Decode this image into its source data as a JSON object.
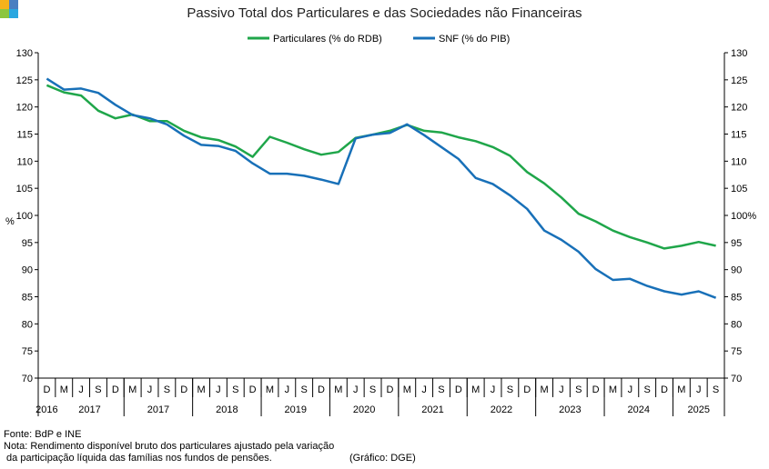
{
  "colors": {
    "logo": [
      "#f6b21b",
      "#4a7fc1",
      "#8cc63f",
      "#2aa7e0"
    ]
  },
  "chart_data": {
    "type": "line",
    "title": "Passivo Total dos Particulares e das Sociedades não Financeiras",
    "ylabel_left": "%",
    "ylabel_right_suffix": "%",
    "ylim": [
      70,
      130
    ],
    "yticks": [
      70,
      75,
      80,
      85,
      90,
      95,
      100,
      105,
      110,
      115,
      120,
      125,
      130
    ],
    "grid": "none",
    "legend_position": "top-center",
    "x": [
      "D",
      "M",
      "J",
      "S",
      "D",
      "M",
      "J",
      "S",
      "D",
      "M",
      "J",
      "S",
      "D",
      "M",
      "J",
      "S",
      "D",
      "M",
      "J",
      "S",
      "D",
      "M",
      "J",
      "S",
      "D",
      "M",
      "J",
      "S",
      "D",
      "M",
      "J",
      "S",
      "D",
      "M",
      "J",
      "S",
      "D",
      "M",
      "J",
      "S"
    ],
    "year_labels": [
      "2016",
      "2017",
      "2017",
      "2018",
      "2019",
      "2020",
      "2021",
      "2022",
      "2023",
      "2024",
      "2025"
    ],
    "series": [
      {
        "name": "Particulares (% do RDB)",
        "color": "#1fa64a",
        "values": [
          124.0,
          122.7,
          122.1,
          119.3,
          117.9,
          118.6,
          117.4,
          117.4,
          115.6,
          114.4,
          113.9,
          112.7,
          110.8,
          114.5,
          113.4,
          112.2,
          111.2,
          111.7,
          114.3,
          114.9,
          115.6,
          116.7,
          115.6,
          115.3,
          114.4,
          113.7,
          112.6,
          111.0,
          108.0,
          105.9,
          103.3,
          100.3,
          98.9,
          97.2,
          96.0,
          95.0,
          93.9,
          94.4,
          95.1,
          94.4
        ]
      },
      {
        "name": "SNF (% do PIB)",
        "color": "#1870b8",
        "values": [
          125.2,
          123.2,
          123.4,
          122.6,
          120.4,
          118.5,
          117.9,
          116.8,
          114.7,
          113.0,
          112.8,
          111.9,
          109.6,
          107.7,
          107.7,
          107.3,
          106.6,
          105.8,
          114.2,
          114.9,
          115.2,
          116.8,
          114.8,
          112.6,
          110.4,
          106.9,
          105.8,
          103.7,
          101.2,
          97.2,
          95.5,
          93.3,
          90.1,
          88.1,
          88.3,
          87.0,
          86.0,
          85.4,
          86.0,
          84.8
        ]
      }
    ]
  },
  "notes": {
    "source": "Fonte: BdP e INE",
    "note_line1": "Nota: Rendimento disponível bruto dos particulares ajustado pela variação",
    "note_line2": " da participação líquida das famílias nos fundos de pensões.",
    "credit": "(Gráfico: DGE)"
  }
}
